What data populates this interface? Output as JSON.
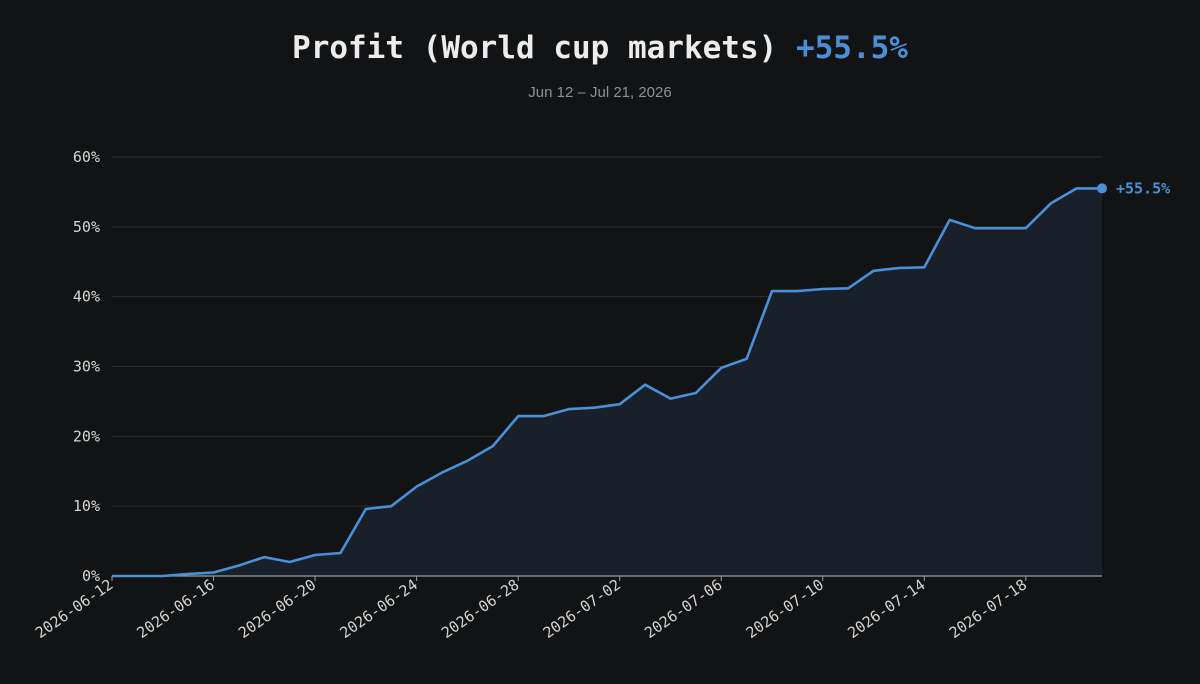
{
  "title": {
    "text": "Profit (World cup markets)",
    "value": "+55.5%"
  },
  "subtitle": "Jun 12 – Jul 21, 2026",
  "colors": {
    "background": "#121314",
    "line": "#4a90d9",
    "area": "#19202a",
    "grid": "#2a2c2e",
    "text": "#d4d4d4"
  },
  "chart_data": {
    "type": "area",
    "title": "Profit (World cup markets) +55.5%",
    "subtitle": "Jun 12 – Jul 21, 2026",
    "xlabel": "",
    "ylabel": "",
    "ylim": [
      0,
      60
    ],
    "yticks": [
      "0%",
      "10%",
      "20%",
      "30%",
      "40%",
      "50%",
      "60%"
    ],
    "xticks": [
      "2026-06-12",
      "2026-06-16",
      "2026-06-20",
      "2026-06-24",
      "2026-06-28",
      "2026-07-02",
      "2026-07-06",
      "2026-07-10",
      "2026-07-14",
      "2026-07-18"
    ],
    "grid": true,
    "end_label": "+55.5%",
    "x": [
      "2026-06-12",
      "2026-06-13",
      "2026-06-14",
      "2026-06-15",
      "2026-06-16",
      "2026-06-17",
      "2026-06-18",
      "2026-06-19",
      "2026-06-20",
      "2026-06-21",
      "2026-06-22",
      "2026-06-23",
      "2026-06-24",
      "2026-06-25",
      "2026-06-26",
      "2026-06-27",
      "2026-06-28",
      "2026-06-29",
      "2026-06-30",
      "2026-07-01",
      "2026-07-02",
      "2026-07-03",
      "2026-07-04",
      "2026-07-05",
      "2026-07-06",
      "2026-07-07",
      "2026-07-08",
      "2026-07-09",
      "2026-07-10",
      "2026-07-11",
      "2026-07-12",
      "2026-07-13",
      "2026-07-14",
      "2026-07-15",
      "2026-07-16",
      "2026-07-17",
      "2026-07-18",
      "2026-07-19",
      "2026-07-20",
      "2026-07-21"
    ],
    "values": [
      0,
      0,
      0,
      0.3,
      0.5,
      1.5,
      2.7,
      2.0,
      3.0,
      3.3,
      9.6,
      10.0,
      12.8,
      14.8,
      16.5,
      18.6,
      22.9,
      22.9,
      23.9,
      24.1,
      24.6,
      27.4,
      25.4,
      26.2,
      29.8,
      31.1,
      40.8,
      40.8,
      41.1,
      41.2,
      43.7,
      44.1,
      44.2,
      51.0,
      49.8,
      49.8,
      49.8,
      53.4,
      55.5,
      55.5
    ]
  }
}
